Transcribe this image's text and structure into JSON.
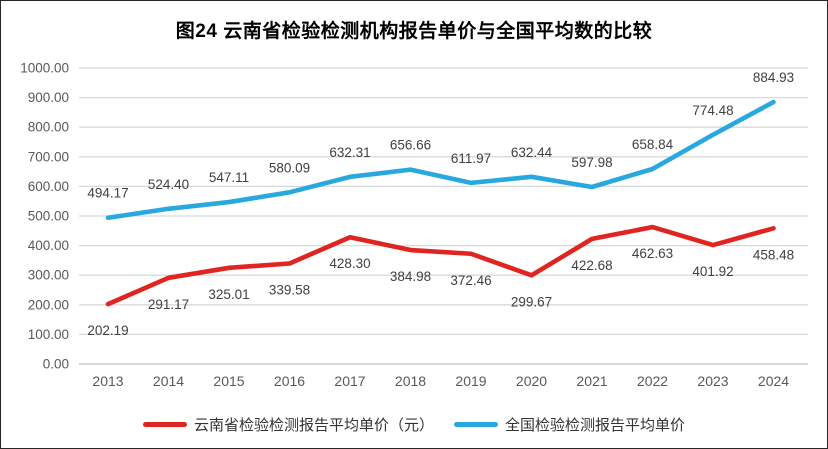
{
  "chart_data": {
    "type": "line",
    "title": "图24 云南省检验检测机构报告单价与全国平均数的比较",
    "categories": [
      "2013",
      "2014",
      "2015",
      "2016",
      "2017",
      "2018",
      "2019",
      "2020",
      "2021",
      "2022",
      "2023",
      "2024"
    ],
    "series": [
      {
        "name": "云南省检验检测报告平均单价（元）",
        "color": "#e02420",
        "values": [
          202.19,
          291.17,
          325.01,
          339.58,
          428.3,
          384.98,
          372.46,
          299.67,
          422.68,
          462.63,
          401.92,
          458.48
        ],
        "label_position": "below"
      },
      {
        "name": "全国检验检测报告平均单价",
        "color": "#29a8df",
        "values": [
          494.17,
          524.4,
          547.11,
          580.09,
          632.31,
          656.66,
          611.97,
          632.44,
          597.98,
          658.84,
          774.48,
          884.93
        ],
        "label_position": "above"
      }
    ],
    "ylim": [
      0,
      1000
    ],
    "y_tick_step": 100,
    "y_tick_labels": [
      "0.00",
      "100.00",
      "200.00",
      "300.00",
      "400.00",
      "500.00",
      "600.00",
      "700.00",
      "800.00",
      "900.00",
      "1000.00"
    ],
    "grid": "horizontal",
    "legend_position": "bottom",
    "colors": {
      "gridline": "#d9d9d9",
      "baseline": "#bfbfbf",
      "tick_text": "#595959",
      "data_label_text": "#404040"
    }
  }
}
